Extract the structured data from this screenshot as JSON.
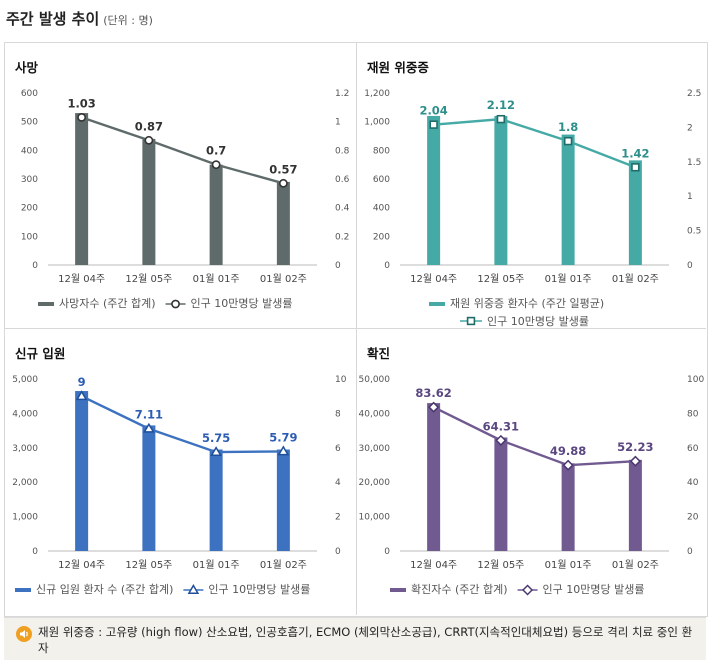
{
  "header": {
    "title": "주간 발생 추이",
    "unit": "(단위 : 명)"
  },
  "colors": {
    "death": "#5f6b6b",
    "severe": "#45aaa6",
    "newadm": "#3d72c0",
    "confirmed": "#705a90"
  },
  "chart_data": [
    {
      "id": "death",
      "type": "bar+line",
      "title": "사망",
      "categories": [
        "12월 04주",
        "12월 05주",
        "01월 01주",
        "01월 02주"
      ],
      "bars": {
        "name": "사망자수 (주간 합계)",
        "values": [
          530,
          440,
          350,
          290
        ]
      },
      "line": {
        "name": "인구 10만명당 발생률",
        "values": [
          1.03,
          0.87,
          0.7,
          0.57
        ],
        "labels": [
          "1.03",
          "0.87",
          "0.7",
          "0.57"
        ],
        "marker": "circle"
      },
      "left_axis": {
        "ylim": [
          0,
          600
        ],
        "ticks": [
          "0",
          "100",
          "200",
          "300",
          "400",
          "500",
          "600"
        ]
      },
      "right_axis": {
        "ylim": [
          0,
          1.2
        ],
        "ticks": [
          "0",
          "0.2",
          "0.4",
          "0.6",
          "0.8",
          "1",
          "1.2"
        ]
      }
    },
    {
      "id": "severe",
      "type": "bar+line",
      "title": "재원 위중증",
      "categories": [
        "12월 04주",
        "12월 05주",
        "01월 01주",
        "01월 02주"
      ],
      "bars": {
        "name": "재원 위중증 환자수 (주간 일평균)",
        "values": [
          1040,
          1040,
          910,
          730
        ]
      },
      "line": {
        "name": "인구 10만명당 발생률",
        "values": [
          2.04,
          2.12,
          1.8,
          1.42
        ],
        "labels": [
          "2.04",
          "2.12",
          "1.8",
          "1.42"
        ],
        "marker": "square"
      },
      "left_axis": {
        "ylim": [
          0,
          1200
        ],
        "ticks": [
          "0",
          "200",
          "400",
          "600",
          "800",
          "1,000",
          "1,200"
        ]
      },
      "right_axis": {
        "ylim": [
          0,
          2.5
        ],
        "ticks": [
          "0",
          "0.5",
          "1",
          "1.5",
          "2",
          "2.5"
        ]
      }
    },
    {
      "id": "newadm",
      "type": "bar+line",
      "title": "신규 입원",
      "categories": [
        "12월 04주",
        "12월 05주",
        "01월 01주",
        "01월 02주"
      ],
      "bars": {
        "name": "신규 입원 환자 수 (주간 합계)",
        "values": [
          4650,
          3650,
          2950,
          2950
        ]
      },
      "line": {
        "name": "인구 10만명당 발생률",
        "values": [
          9,
          7.11,
          5.75,
          5.79
        ],
        "labels": [
          "9",
          "7.11",
          "5.75",
          "5.79"
        ],
        "marker": "triangle"
      },
      "left_axis": {
        "ylim": [
          0,
          5000
        ],
        "ticks": [
          "0",
          "1,000",
          "2,000",
          "3,000",
          "4,000",
          "5,000"
        ]
      },
      "right_axis": {
        "ylim": [
          0,
          10
        ],
        "ticks": [
          "0",
          "2",
          "4",
          "6",
          "8",
          "10"
        ]
      }
    },
    {
      "id": "confirmed",
      "type": "bar+line",
      "title": "확진",
      "categories": [
        "12월 04주",
        "12월 05주",
        "01월 01주",
        "01월 02주"
      ],
      "bars": {
        "name": "확진자수 (주간 합계)",
        "values": [
          43000,
          33000,
          25500,
          26500
        ]
      },
      "line": {
        "name": "인구 10만명당 발생률",
        "values": [
          83.62,
          64.31,
          49.88,
          52.23
        ],
        "labels": [
          "83.62",
          "64.31",
          "49.88",
          "52.23"
        ],
        "marker": "diamond"
      },
      "left_axis": {
        "ylim": [
          0,
          50000
        ],
        "ticks": [
          "0",
          "10,000",
          "20,000",
          "30,000",
          "40,000",
          "50,000"
        ]
      },
      "right_axis": {
        "ylim": [
          0,
          100
        ],
        "ticks": [
          "0",
          "20",
          "40",
          "60",
          "80",
          "100"
        ]
      }
    }
  ],
  "note": {
    "text": "재원 위중증 : 고유량 (high flow) 산소요법, 인공호흡기, ECMO (체외막산소공급), CRRT(지속적인대체요법) 등으로 격리 치료 중인 환자"
  }
}
